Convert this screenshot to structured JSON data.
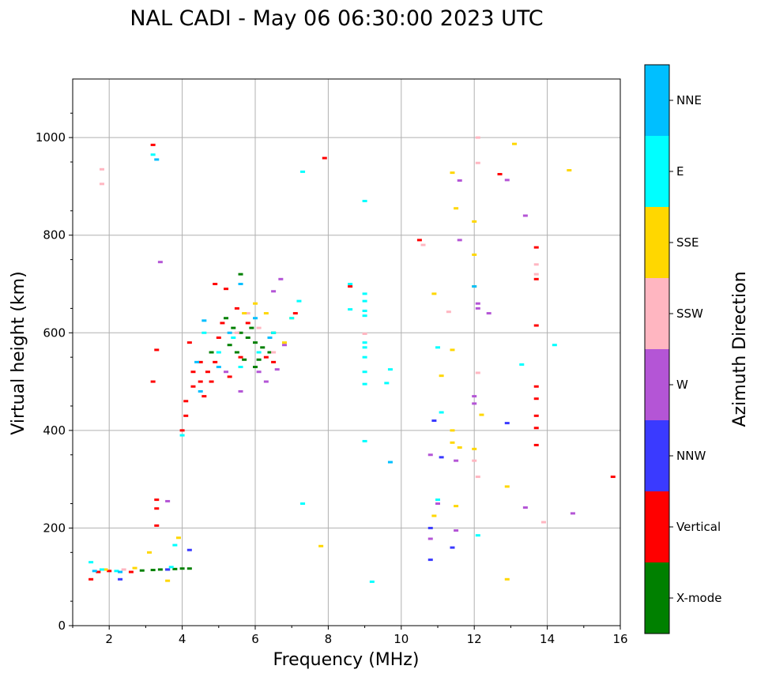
{
  "chart_data": {
    "type": "scatter",
    "title": "NAL CADI - May 06 06:30:00 2023 UTC",
    "xlabel": "Frequency (MHz)",
    "ylabel": "Virtual height (km)",
    "xlim": [
      1,
      16
    ],
    "ylim": [
      0,
      1120
    ],
    "xticks": [
      "2",
      "4",
      "6",
      "8",
      "10",
      "12",
      "14",
      "16"
    ],
    "yticks": [
      "0",
      "200",
      "400",
      "600",
      "800",
      "1000"
    ],
    "grid": true,
    "colorbar": {
      "label": "Azimuth Direction",
      "categories": [
        {
          "name": "X-mode",
          "color": "#008000"
        },
        {
          "name": "Vertical",
          "color": "#ff0000"
        },
        {
          "name": "NNW",
          "color": "#3a3aff"
        },
        {
          "name": "W",
          "color": "#b455d6"
        },
        {
          "name": "SSW",
          "color": "#ffb6c1"
        },
        {
          "name": "SSE",
          "color": "#ffd700"
        },
        {
          "name": "E",
          "color": "#00ffff"
        },
        {
          "name": "NNE",
          "color": "#00bfff"
        }
      ]
    },
    "series": [
      {
        "name": "X-mode",
        "points": [
          [
            3.6,
            115
          ],
          [
            3.8,
            116
          ],
          [
            4.0,
            117
          ],
          [
            4.2,
            117
          ],
          [
            3.2,
            114
          ],
          [
            3.4,
            115
          ],
          [
            2.9,
            113
          ],
          [
            5.2,
            630
          ],
          [
            5.4,
            610
          ],
          [
            5.6,
            600
          ],
          [
            5.8,
            590
          ],
          [
            6.0,
            580
          ],
          [
            6.2,
            570
          ],
          [
            6.4,
            560
          ],
          [
            5.5,
            560
          ],
          [
            5.7,
            545
          ],
          [
            6.0,
            530
          ],
          [
            5.3,
            575
          ],
          [
            6.5,
            600
          ],
          [
            4.8,
            560
          ],
          [
            6.1,
            545
          ],
          [
            5.9,
            610
          ],
          [
            5.6,
            720
          ]
        ]
      },
      {
        "name": "Vertical",
        "points": [
          [
            1.5,
            95
          ],
          [
            1.7,
            110
          ],
          [
            2.0,
            112
          ],
          [
            2.6,
            110
          ],
          [
            3.2,
            985
          ],
          [
            3.3,
            565
          ],
          [
            3.2,
            500
          ],
          [
            3.3,
            258
          ],
          [
            3.3,
            240
          ],
          [
            3.3,
            205
          ],
          [
            4.0,
            400
          ],
          [
            4.1,
            460
          ],
          [
            4.1,
            430
          ],
          [
            4.2,
            580
          ],
          [
            4.3,
            520
          ],
          [
            4.3,
            490
          ],
          [
            4.5,
            500
          ],
          [
            4.5,
            540
          ],
          [
            4.6,
            470
          ],
          [
            4.7,
            520
          ],
          [
            4.8,
            500
          ],
          [
            4.9,
            540
          ],
          [
            4.9,
            700
          ],
          [
            5.0,
            590
          ],
          [
            5.1,
            620
          ],
          [
            5.2,
            690
          ],
          [
            5.3,
            510
          ],
          [
            5.5,
            650
          ],
          [
            5.6,
            550
          ],
          [
            5.8,
            620
          ],
          [
            6.3,
            550
          ],
          [
            6.5,
            540
          ],
          [
            7.1,
            640
          ],
          [
            7.9,
            958
          ],
          [
            8.6,
            695
          ],
          [
            10.5,
            790
          ],
          [
            12.7,
            925
          ],
          [
            13.7,
            775
          ],
          [
            13.7,
            710
          ],
          [
            13.7,
            615
          ],
          [
            13.7,
            490
          ],
          [
            13.7,
            465
          ],
          [
            13.7,
            430
          ],
          [
            13.7,
            405
          ],
          [
            13.7,
            370
          ],
          [
            15.8,
            305
          ]
        ]
      },
      {
        "name": "NNW",
        "points": [
          [
            2.3,
            95
          ],
          [
            3.6,
            115
          ],
          [
            4.2,
            155
          ],
          [
            10.8,
            135
          ],
          [
            10.8,
            200
          ],
          [
            10.9,
            420
          ],
          [
            11.1,
            345
          ],
          [
            11.4,
            160
          ],
          [
            12.9,
            415
          ]
        ]
      },
      {
        "name": "W",
        "points": [
          [
            3.4,
            745
          ],
          [
            3.6,
            255
          ],
          [
            5.2,
            520
          ],
          [
            5.6,
            480
          ],
          [
            6.1,
            520
          ],
          [
            6.3,
            500
          ],
          [
            6.5,
            685
          ],
          [
            6.7,
            710
          ],
          [
            6.6,
            525
          ],
          [
            6.8,
            575
          ],
          [
            10.8,
            178
          ],
          [
            10.8,
            350
          ],
          [
            11.0,
            250
          ],
          [
            11.5,
            195
          ],
          [
            11.5,
            338
          ],
          [
            11.6,
            912
          ],
          [
            11.6,
            790
          ],
          [
            12.0,
            455
          ],
          [
            12.0,
            470
          ],
          [
            12.1,
            660
          ],
          [
            12.1,
            650
          ],
          [
            12.4,
            640
          ],
          [
            12.9,
            913
          ],
          [
            13.4,
            840
          ],
          [
            13.4,
            242
          ],
          [
            14.7,
            230
          ]
        ]
      },
      {
        "name": "SSW",
        "points": [
          [
            1.8,
            935
          ],
          [
            1.8,
            905
          ],
          [
            2.4,
            115
          ],
          [
            5.5,
            600
          ],
          [
            5.8,
            640
          ],
          [
            6.1,
            610
          ],
          [
            6.5,
            560
          ],
          [
            9.0,
            598
          ],
          [
            10.6,
            780
          ],
          [
            11.3,
            643
          ],
          [
            12.0,
            338
          ],
          [
            12.1,
            1000
          ],
          [
            12.1,
            948
          ],
          [
            12.1,
            518
          ],
          [
            12.1,
            305
          ],
          [
            13.7,
            740
          ],
          [
            13.7,
            720
          ],
          [
            13.9,
            212
          ]
        ]
      },
      {
        "name": "SSE",
        "points": [
          [
            1.9,
            115
          ],
          [
            2.7,
            118
          ],
          [
            3.1,
            150
          ],
          [
            3.6,
            92
          ],
          [
            3.9,
            180
          ],
          [
            5.7,
            640
          ],
          [
            6.0,
            660
          ],
          [
            6.3,
            640
          ],
          [
            6.8,
            580
          ],
          [
            7.0,
            630
          ],
          [
            7.8,
            163
          ],
          [
            10.9,
            225
          ],
          [
            10.9,
            680
          ],
          [
            11.1,
            512
          ],
          [
            11.4,
            928
          ],
          [
            11.4,
            565
          ],
          [
            11.4,
            400
          ],
          [
            11.4,
            375
          ],
          [
            11.5,
            855
          ],
          [
            11.5,
            245
          ],
          [
            11.6,
            365
          ],
          [
            12.0,
            760
          ],
          [
            12.0,
            828
          ],
          [
            12.0,
            695
          ],
          [
            12.0,
            362
          ],
          [
            12.2,
            432
          ],
          [
            12.9,
            285
          ],
          [
            12.9,
            95
          ],
          [
            13.1,
            987
          ],
          [
            14.6,
            933
          ]
        ]
      },
      {
        "name": "E",
        "points": [
          [
            1.5,
            130
          ],
          [
            1.8,
            115
          ],
          [
            2.2,
            112
          ],
          [
            3.2,
            965
          ],
          [
            3.7,
            120
          ],
          [
            3.8,
            165
          ],
          [
            4.0,
            390
          ],
          [
            4.6,
            600
          ],
          [
            5.0,
            560
          ],
          [
            5.4,
            590
          ],
          [
            5.6,
            530
          ],
          [
            6.1,
            560
          ],
          [
            6.5,
            600
          ],
          [
            7.0,
            630
          ],
          [
            7.2,
            665
          ],
          [
            7.3,
            930
          ],
          [
            7.3,
            250
          ],
          [
            8.6,
            648
          ],
          [
            8.6,
            700
          ],
          [
            9.0,
            870
          ],
          [
            9.0,
            680
          ],
          [
            9.0,
            665
          ],
          [
            9.0,
            645
          ],
          [
            9.0,
            635
          ],
          [
            9.0,
            580
          ],
          [
            9.0,
            570
          ],
          [
            9.0,
            550
          ],
          [
            9.0,
            520
          ],
          [
            9.0,
            495
          ],
          [
            9.0,
            378
          ],
          [
            9.2,
            90
          ],
          [
            9.6,
            497
          ],
          [
            9.7,
            525
          ],
          [
            11.0,
            570
          ],
          [
            11.0,
            258
          ],
          [
            11.1,
            437
          ],
          [
            12.1,
            185
          ],
          [
            13.3,
            535
          ],
          [
            14.2,
            575
          ]
        ]
      },
      {
        "name": "NNE",
        "points": [
          [
            1.6,
            112
          ],
          [
            2.3,
            110
          ],
          [
            3.3,
            955
          ],
          [
            4.4,
            540
          ],
          [
            4.5,
            480
          ],
          [
            4.6,
            625
          ],
          [
            5.0,
            530
          ],
          [
            5.3,
            600
          ],
          [
            5.6,
            700
          ],
          [
            6.0,
            630
          ],
          [
            6.4,
            590
          ],
          [
            9.7,
            335
          ],
          [
            12.0,
            695
          ]
        ]
      }
    ]
  }
}
